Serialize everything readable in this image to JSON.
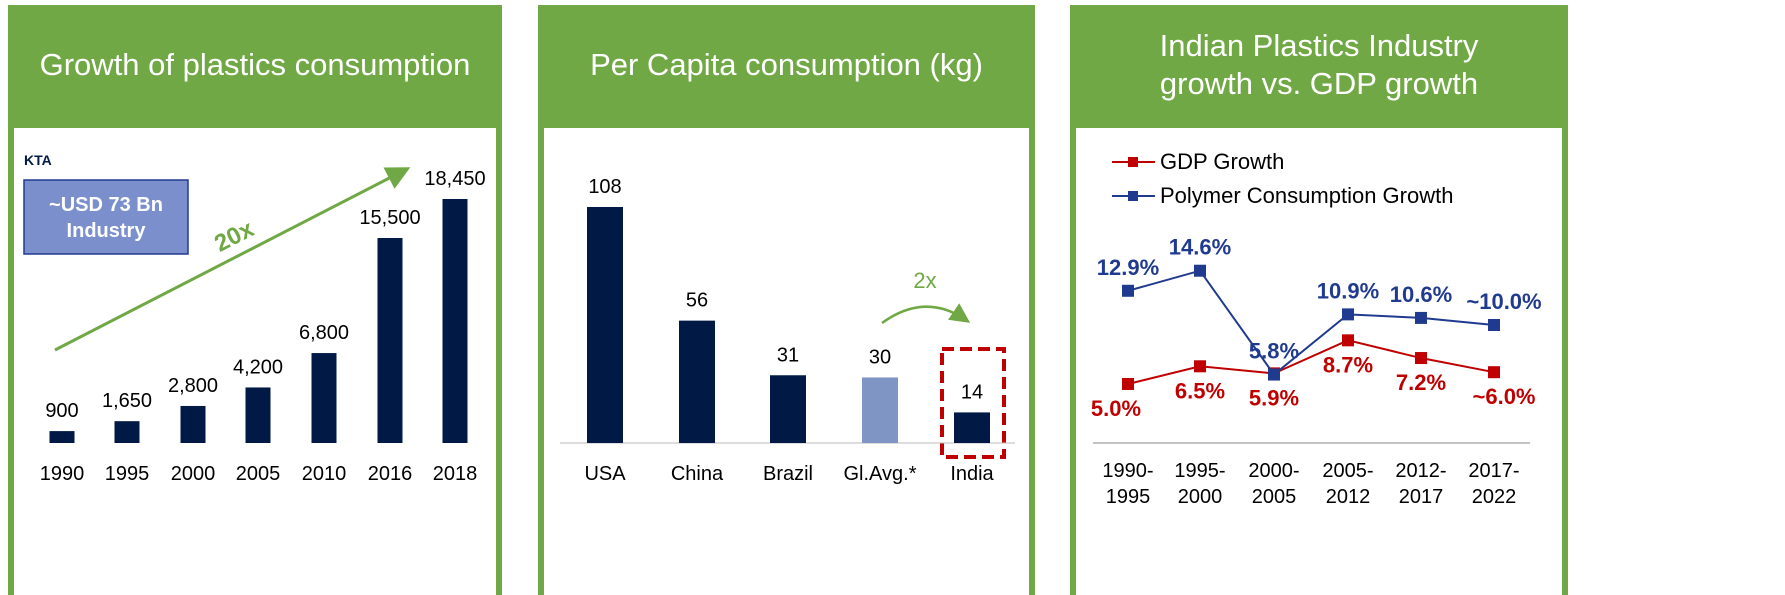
{
  "chart_data": [
    {
      "type": "bar",
      "title": "Growth of plastics consumption",
      "categories": [
        "1990",
        "1995",
        "2000",
        "2005",
        "2010",
        "2016",
        "2018"
      ],
      "values": [
        900,
        1650,
        2800,
        4200,
        6800,
        15500,
        18450
      ],
      "value_labels": [
        "900",
        "1,650",
        "2,800",
        "4,200",
        "6,800",
        "15,500",
        "18,450"
      ],
      "color": "#001a45",
      "annotations": [
        "KTA",
        "~USD 73 Bn Industry",
        "20x"
      ]
    },
    {
      "type": "bar",
      "title": "Per Capita consumption (kg)",
      "categories": [
        "USA",
        "China",
        "Brazil",
        "Gl.Avg.*",
        "India"
      ],
      "values": [
        108,
        56,
        31,
        30,
        14
      ],
      "colors": [
        "#001a45",
        "#001a45",
        "#001a45",
        "#7f96c4",
        "#001a45"
      ],
      "annotations": [
        "2x"
      ]
    },
    {
      "type": "line",
      "title": "Indian Plastics Industry growth vs. GDP growth",
      "categories": [
        "1990-1995",
        "1995-2000",
        "2000-2005",
        "2005-2012",
        "2012-2017",
        "2017-2022"
      ],
      "series": [
        {
          "name": "GDP Growth",
          "color": "#c00000",
          "values": [
            5.0,
            6.5,
            5.9,
            8.7,
            7.2,
            6.0
          ],
          "value_labels": [
            "5.0%",
            "6.5%",
            "5.9%",
            "8.7%",
            "7.2%",
            "~6.0%"
          ]
        },
        {
          "name": "Polymer Consumption Growth",
          "color": "#203a8f",
          "values": [
            12.9,
            14.6,
            5.8,
            10.9,
            10.6,
            10.0
          ],
          "value_labels": [
            "12.9%",
            "14.6%",
            "5.8%",
            "10.9%",
            "10.6%",
            "~10.0%"
          ]
        }
      ]
    }
  ]
}
